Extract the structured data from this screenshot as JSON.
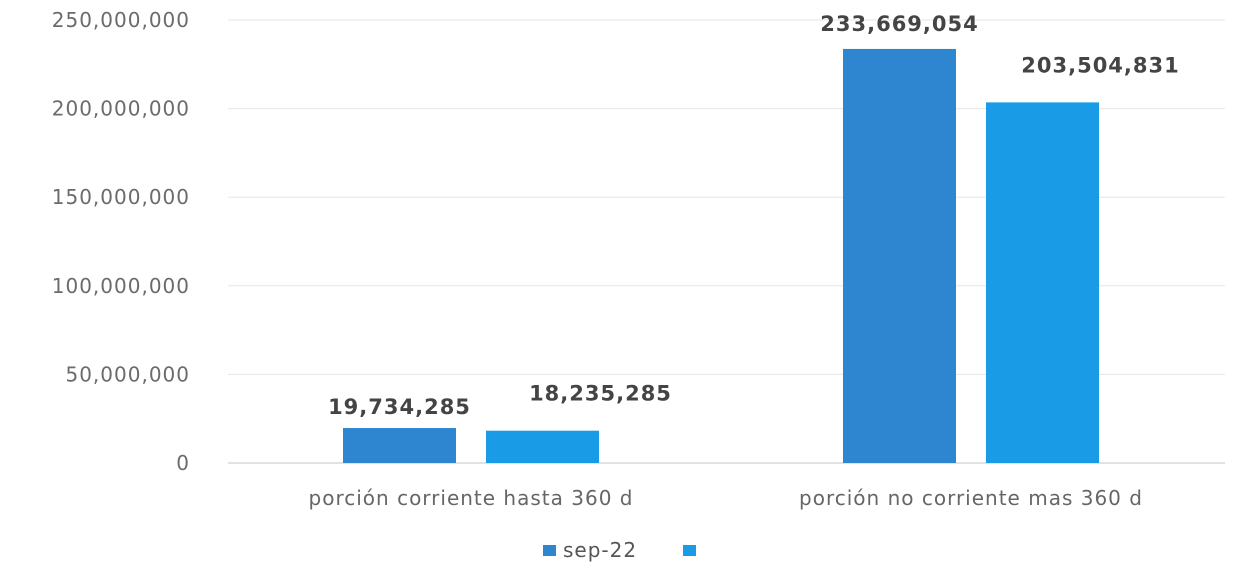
{
  "chart_data": {
    "type": "bar",
    "categories": [
      "porción corriente hasta 360 d",
      "porción no corriente mas 360 d"
    ],
    "series": [
      {
        "name": "sep-22",
        "values": [
          19734285,
          233669054
        ],
        "labels": [
          "19,734,285",
          "233,669,054"
        ],
        "color": "#2e86d0"
      },
      {
        "name": "",
        "values": [
          18235285,
          203504831
        ],
        "labels": [
          "18,235,285",
          "203,504,831"
        ],
        "color": "#1a9be6"
      }
    ],
    "yticks": [
      "0",
      "50,000,000",
      "100,000,000",
      "150,000,000",
      "200,000,000",
      "250,000,000"
    ],
    "ylim": [
      0,
      250000000
    ],
    "grid": true,
    "legend": "bottom"
  }
}
